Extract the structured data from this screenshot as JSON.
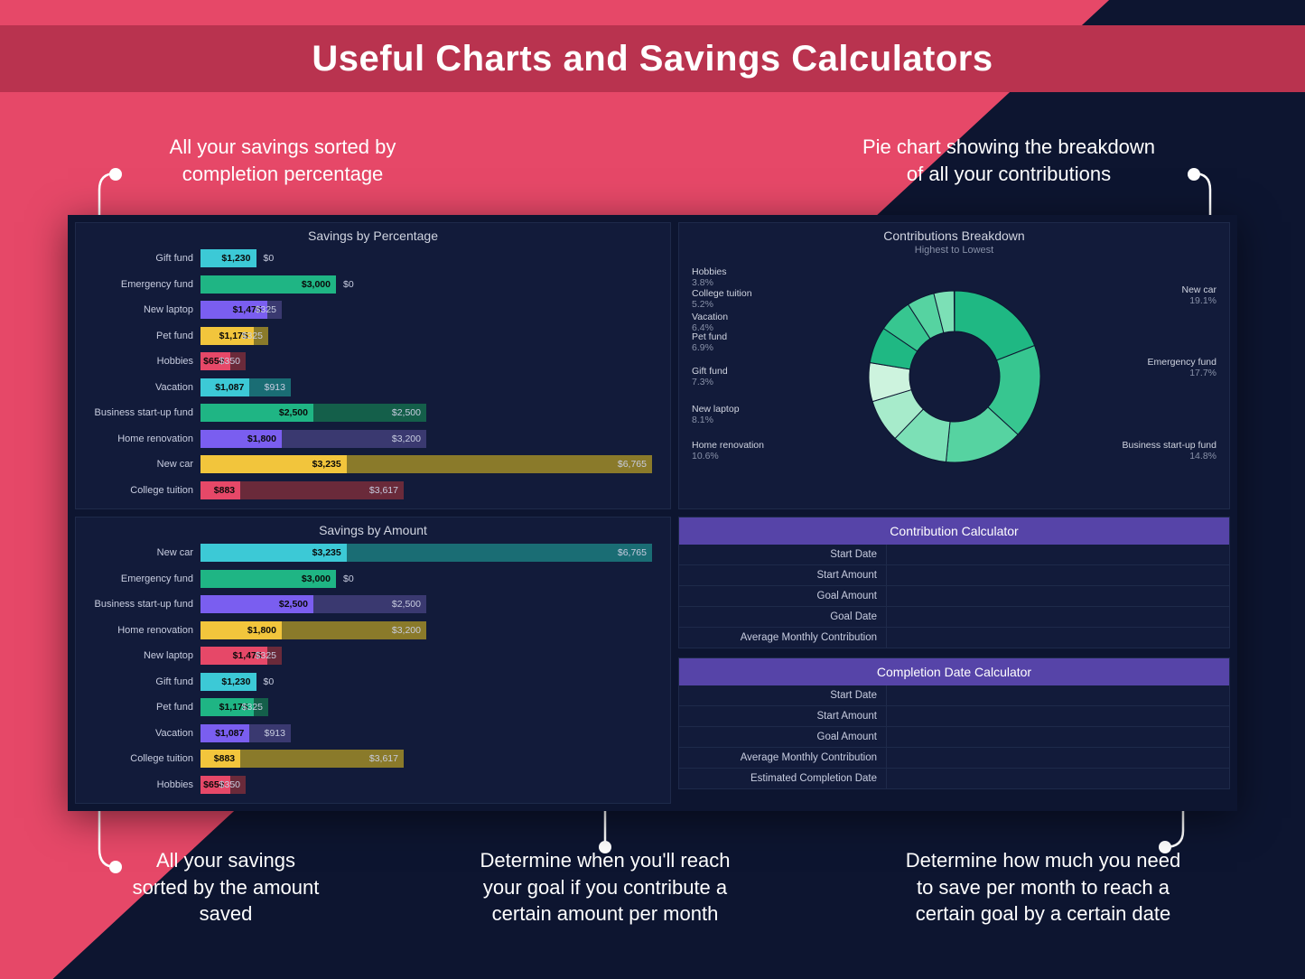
{
  "title": "Useful Charts and Savings Calculators",
  "callouts": {
    "top_left": "All your savings sorted by\ncompletion percentage",
    "top_right": "Pie chart showing the breakdown\nof all your contributions",
    "bottom_left": "All your savings\nsorted by the amount\nsaved",
    "bottom_mid": "Determine when you'll reach\nyour goal if you contribute a\ncertain amount per month",
    "bottom_right": "Determine how much you need\nto save per month to reach a\ncertain goal by a certain date"
  },
  "colors": {
    "pink": "#e64868",
    "pink_dark": "#b9334f",
    "bg_dark": "#0d1530",
    "panel": "#121b3a",
    "purple_header": "#5644a8"
  },
  "percent_chart": {
    "title": "Savings by Percentage",
    "max_total": 10000,
    "rows": [
      {
        "label": "Gift fund",
        "saved_txt": "$1,230",
        "rest_txt": "$0",
        "saved": 1230,
        "total": 1230,
        "color": "#3cc9d6"
      },
      {
        "label": "Emergency fund",
        "saved_txt": "$3,000",
        "rest_txt": "$0",
        "saved": 3000,
        "total": 3000,
        "color": "#1fb584"
      },
      {
        "label": "New laptop",
        "saved_txt": "$1,475",
        "rest_txt": "$325",
        "saved": 1475,
        "total": 1800,
        "color": "#7a5ef0",
        "rest_color": "#3a3970"
      },
      {
        "label": "Pet fund",
        "saved_txt": "$1,175",
        "rest_txt": "$325",
        "saved": 1175,
        "total": 1500,
        "color": "#f2c53c",
        "rest_color": "#8a7a2a"
      },
      {
        "label": "Hobbies",
        "saved_txt": "$650",
        "rest_txt": "$350",
        "saved": 650,
        "total": 1000,
        "color": "#e64868",
        "rest_color": "#6a2a3a"
      },
      {
        "label": "Vacation",
        "saved_txt": "$1,087",
        "rest_txt": "$913",
        "saved": 1087,
        "total": 2000,
        "color": "#3cc9d6",
        "rest_color": "#1a6d74"
      },
      {
        "label": "Business start-up fund",
        "saved_txt": "$2,500",
        "rest_txt": "$2,500",
        "saved": 2500,
        "total": 5000,
        "color": "#1fb584",
        "rest_color": "#145f4a"
      },
      {
        "label": "Home renovation",
        "saved_txt": "$1,800",
        "rest_txt": "$3,200",
        "saved": 1800,
        "total": 5000,
        "color": "#7a5ef0",
        "rest_color": "#3a3970"
      },
      {
        "label": "New car",
        "saved_txt": "$3,235",
        "rest_txt": "$6,765",
        "saved": 3235,
        "total": 10000,
        "color": "#f2c53c",
        "rest_color": "#8a7a2a"
      },
      {
        "label": "College tuition",
        "saved_txt": "$883",
        "rest_txt": "$3,617",
        "saved": 883,
        "total": 4500,
        "color": "#e64868",
        "rest_color": "#6a2a3a"
      }
    ]
  },
  "amount_chart": {
    "title": "Savings by Amount",
    "max_total": 10000,
    "rows": [
      {
        "label": "New car",
        "saved_txt": "$3,235",
        "rest_txt": "$6,765",
        "saved": 3235,
        "total": 10000,
        "color": "#3cc9d6",
        "rest_color": "#1a6d74"
      },
      {
        "label": "Emergency fund",
        "saved_txt": "$3,000",
        "rest_txt": "$0",
        "saved": 3000,
        "total": 3000,
        "color": "#1fb584"
      },
      {
        "label": "Business start-up fund",
        "saved_txt": "$2,500",
        "rest_txt": "$2,500",
        "saved": 2500,
        "total": 5000,
        "color": "#7a5ef0",
        "rest_color": "#3a3970"
      },
      {
        "label": "Home renovation",
        "saved_txt": "$1,800",
        "rest_txt": "$3,200",
        "saved": 1800,
        "total": 5000,
        "color": "#f2c53c",
        "rest_color": "#8a7a2a"
      },
      {
        "label": "New laptop",
        "saved_txt": "$1,475",
        "rest_txt": "$325",
        "saved": 1475,
        "total": 1800,
        "color": "#e64868",
        "rest_color": "#6a2a3a"
      },
      {
        "label": "Gift fund",
        "saved_txt": "$1,230",
        "rest_txt": "$0",
        "saved": 1230,
        "total": 1230,
        "color": "#3cc9d6"
      },
      {
        "label": "Pet fund",
        "saved_txt": "$1,175",
        "rest_txt": "$325",
        "saved": 1175,
        "total": 1500,
        "color": "#1fb584",
        "rest_color": "#145f4a"
      },
      {
        "label": "Vacation",
        "saved_txt": "$1,087",
        "rest_txt": "$913",
        "saved": 1087,
        "total": 2000,
        "color": "#7a5ef0",
        "rest_color": "#3a3970"
      },
      {
        "label": "College tuition",
        "saved_txt": "$883",
        "rest_txt": "$3,617",
        "saved": 883,
        "total": 4500,
        "color": "#f2c53c",
        "rest_color": "#8a7a2a"
      },
      {
        "label": "Hobbies",
        "saved_txt": "$650",
        "rest_txt": "$350",
        "saved": 650,
        "total": 1000,
        "color": "#e64868",
        "rest_color": "#6a2a3a"
      }
    ]
  },
  "donut": {
    "title": "Contributions Breakdown",
    "subtitle": "Highest to Lowest",
    "colors": [
      "#1fb883",
      "#4ad19a",
      "#7be0b4",
      "#a8ebcb",
      "#d0f4e1",
      "#1fb883",
      "#4ad19a",
      "#7be0b4",
      "#a8ebcb",
      "#d0f4e1"
    ],
    "slices": [
      {
        "label": "New car",
        "pct": 19.1
      },
      {
        "label": "Emergency fund",
        "pct": 17.7
      },
      {
        "label": "Business start-up fund",
        "pct": 14.8
      },
      {
        "label": "Home renovation",
        "pct": 10.6
      },
      {
        "label": "New laptop",
        "pct": 8.1
      },
      {
        "label": "Gift fund",
        "pct": 7.3
      },
      {
        "label": "Pet fund",
        "pct": 6.9
      },
      {
        "label": "Vacation",
        "pct": 6.4
      },
      {
        "label": "College tuition",
        "pct": 5.2
      },
      {
        "label": "Hobbies",
        "pct": 3.8
      }
    ],
    "left_labels": [
      {
        "label": "Hobbies",
        "pct": "3.8%"
      },
      {
        "label": "College tuition",
        "pct": "5.2%"
      },
      {
        "label": "Vacation",
        "pct": "6.4%"
      },
      {
        "label": "Pet fund",
        "pct": "6.9%"
      },
      {
        "label": "Gift fund",
        "pct": "7.3%"
      },
      {
        "label": "New laptop",
        "pct": "8.1%"
      },
      {
        "label": "Home renovation",
        "pct": "10.6%"
      }
    ],
    "right_labels": [
      {
        "label": "New car",
        "pct": "19.1%"
      },
      {
        "label": "Emergency fund",
        "pct": "17.7%"
      },
      {
        "label": "Business start-up fund",
        "pct": "14.8%"
      }
    ]
  },
  "calc1": {
    "title": "Contribution Calculator",
    "rows": [
      "Start Date",
      "Start Amount",
      "Goal Amount",
      "Goal Date",
      "Average Monthly Contribution"
    ]
  },
  "calc2": {
    "title": "Completion Date Calculator",
    "rows": [
      "Start Date",
      "Start Amount",
      "Goal Amount",
      "Average Monthly Contribution",
      "Estimated Completion Date"
    ]
  }
}
